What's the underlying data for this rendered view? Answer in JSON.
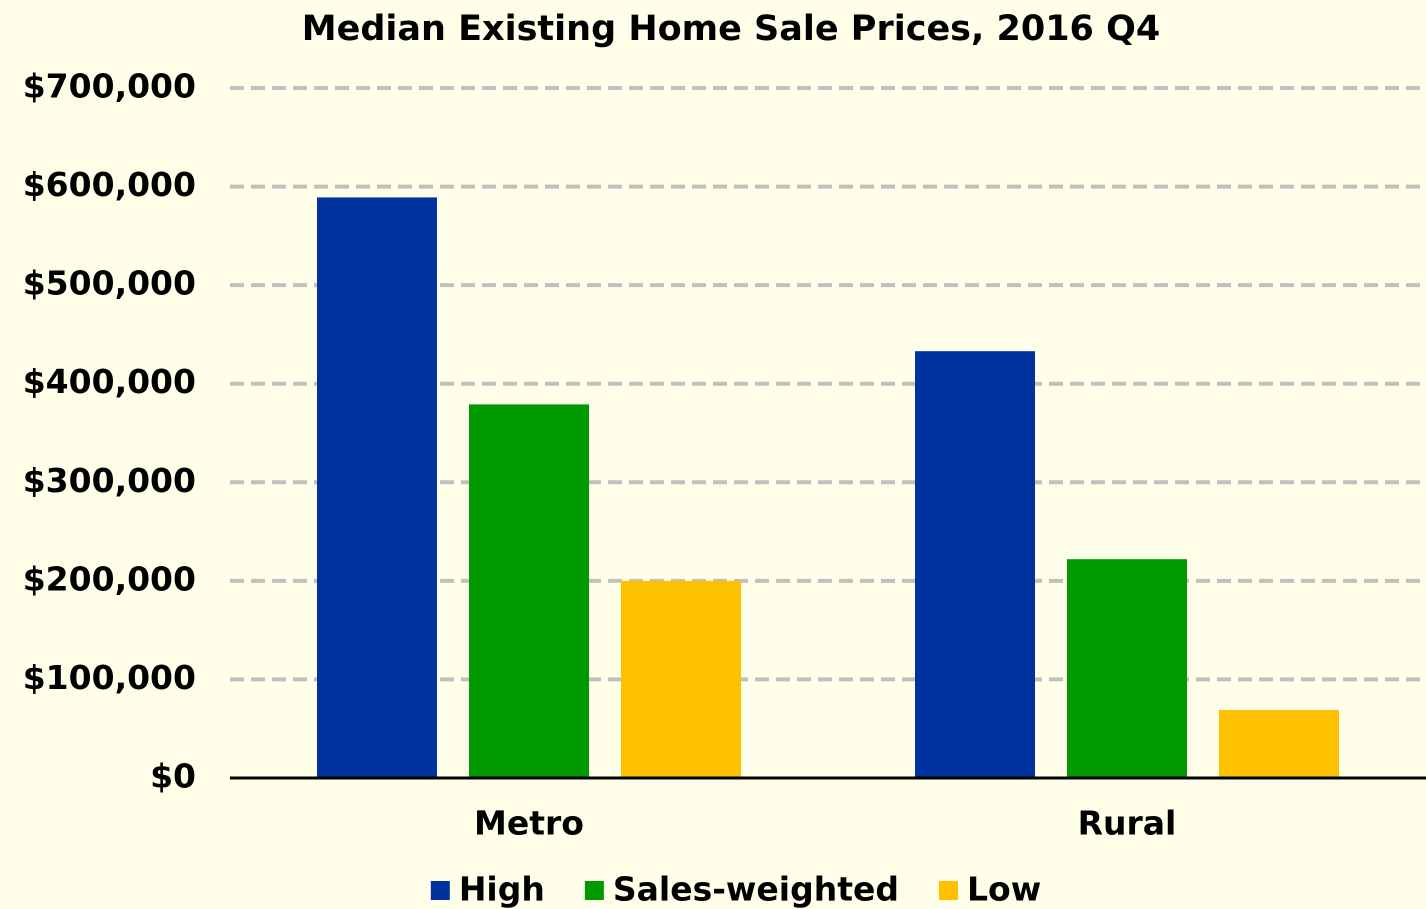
{
  "chart_data": {
    "type": "bar",
    "title": "Median Existing Home Sale Prices, 2016 Q4",
    "categories": [
      "Metro",
      "Rural"
    ],
    "series": [
      {
        "name": "High",
        "color": "#0033a0",
        "values": [
          589000,
          433000
        ]
      },
      {
        "name": "Sales-weighted",
        "color": "#009900",
        "values": [
          379000,
          222000
        ]
      },
      {
        "name": "Low",
        "color": "#ffc000",
        "values": [
          200000,
          69000
        ]
      }
    ],
    "ylim": [
      0,
      700000
    ],
    "yticks": [
      {
        "value": 0,
        "label": "$0"
      },
      {
        "value": 100000,
        "label": "$100,000"
      },
      {
        "value": 200000,
        "label": "$200,000"
      },
      {
        "value": 300000,
        "label": "$300,000"
      },
      {
        "value": 400000,
        "label": "$400,000"
      },
      {
        "value": 500000,
        "label": "$500,000"
      },
      {
        "value": 600000,
        "label": "$600,000"
      },
      {
        "value": 700000,
        "label": "$700,000"
      }
    ],
    "grid": true,
    "legend": "bottom"
  }
}
